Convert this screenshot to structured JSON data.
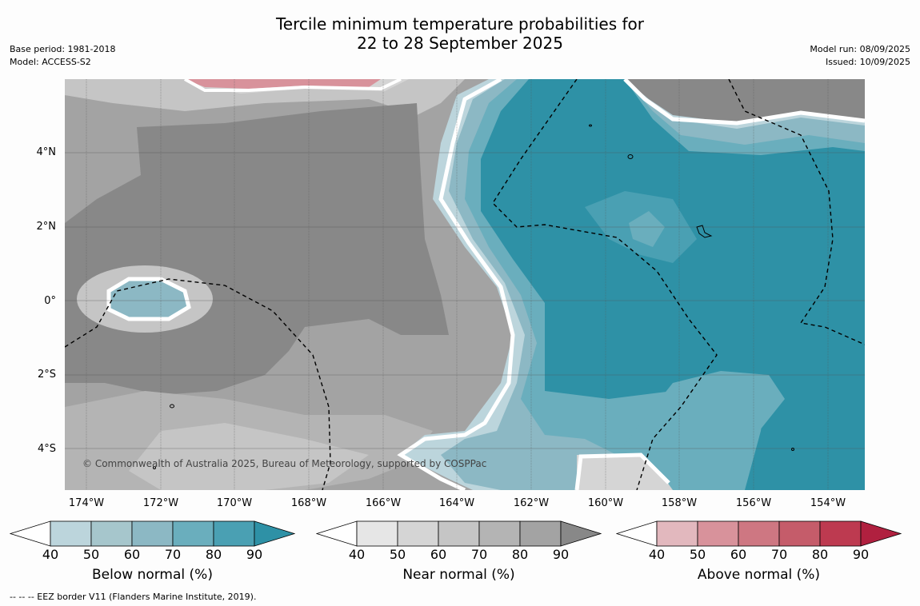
{
  "title": {
    "line1": "Tercile minimum temperature probabilities for",
    "line2": "22 to 28 September 2025"
  },
  "meta_left": {
    "base_period": "Base period: 1981-2018",
    "model": "Model: ACCESS-S2"
  },
  "meta_right": {
    "model_run": "Model run: 08/09/2025",
    "issued": "Issued: 10/09/2025"
  },
  "latitude_labels": [
    "4°N",
    "2°N",
    "0°",
    "2°S",
    "4°S"
  ],
  "longitude_labels": [
    "174°W",
    "172°W",
    "170°W",
    "168°W",
    "166°W",
    "164°W",
    "162°W",
    "160°W",
    "158°W",
    "156°W",
    "154°W"
  ],
  "copyright": "© Commonwealth of Australia 2025, Bureau of Meteorology, supported by COSPPac",
  "colorbars": [
    {
      "label": "Below normal (%)",
      "ticks": [
        "40",
        "50",
        "60",
        "70",
        "80",
        "90"
      ],
      "colors": [
        "#bcd5dc",
        "#a6c6cc",
        "#8cb8c4",
        "#6aaebd",
        "#4aa0b3",
        "#2e91a6"
      ]
    },
    {
      "label": "Near normal (%)",
      "ticks": [
        "40",
        "50",
        "60",
        "70",
        "80",
        "90"
      ],
      "colors": [
        "#e6e6e6",
        "#d5d5d5",
        "#c5c5c5",
        "#b4b4b4",
        "#a3a3a3",
        "#888888"
      ]
    },
    {
      "label": "Above normal (%)",
      "ticks": [
        "40",
        "50",
        "60",
        "70",
        "80",
        "90"
      ],
      "colors": [
        "#e2b8be",
        "#d8929b",
        "#ce7782",
        "#c55c6a",
        "#bd3a50",
        "#b0203f"
      ]
    }
  ],
  "footnote": "-- -- -- EEZ border V11 (Flanders Marine Institute, 2019)."
}
